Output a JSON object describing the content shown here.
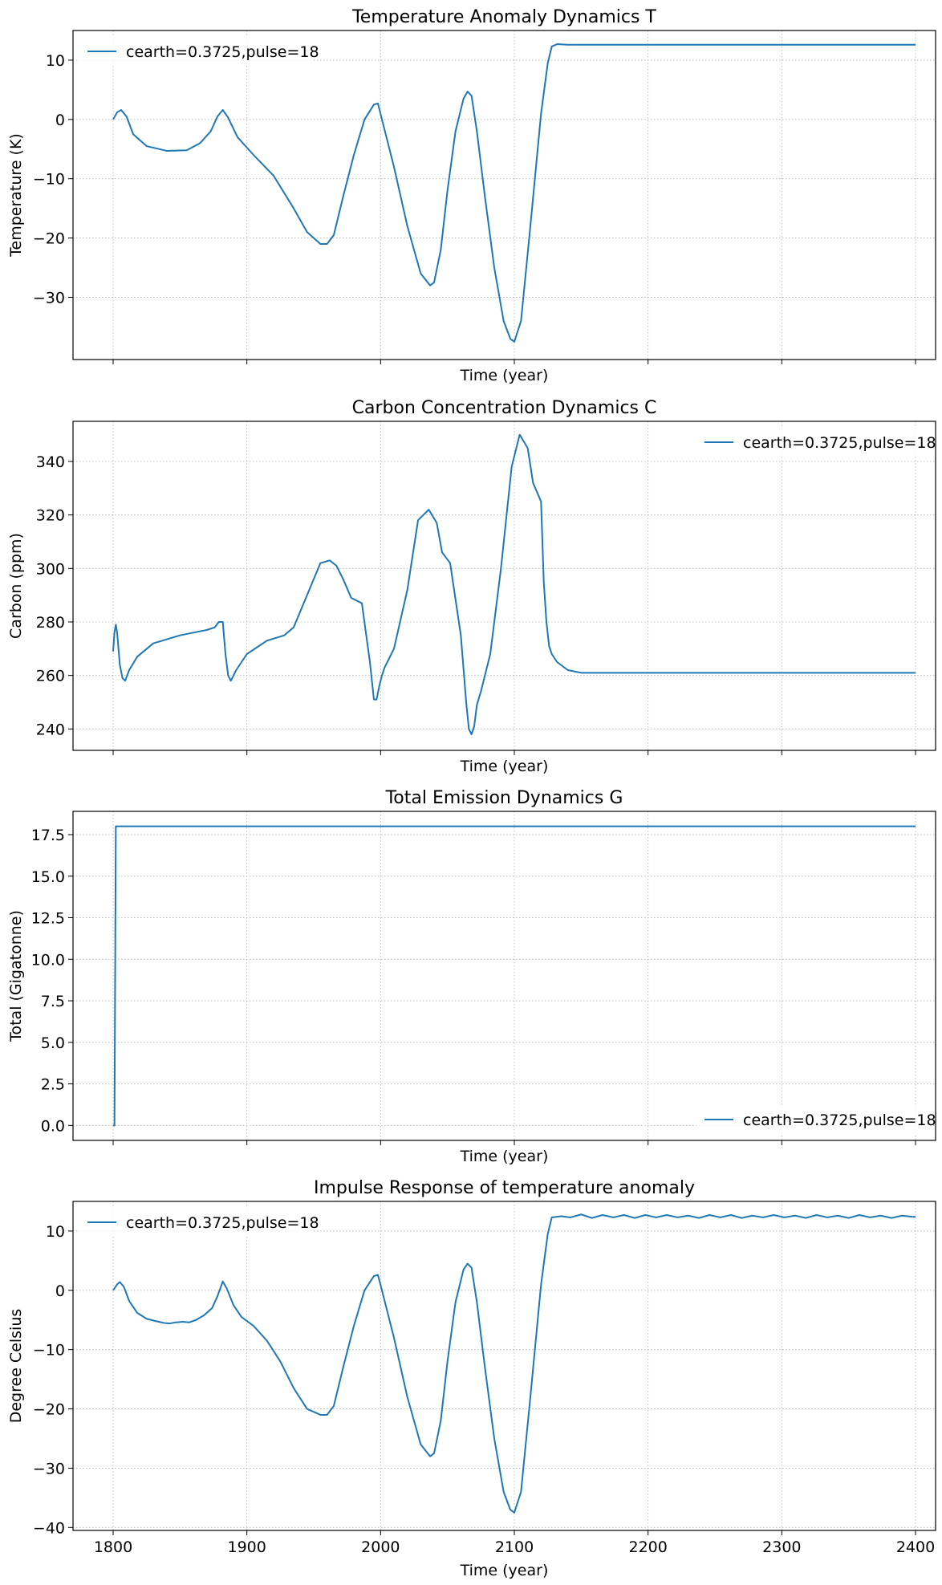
{
  "chart_data": [
    {
      "type": "line",
      "title": "Temperature Anomaly Dynamics T",
      "xlabel": "Time (year)",
      "ylabel": "Temperature (K)",
      "xlim": [
        1770,
        2415
      ],
      "ylim": [
        -40.5,
        15
      ],
      "xticks": [
        1800,
        1900,
        2000,
        2100,
        2200,
        2300,
        2400
      ],
      "yticks": [
        -30,
        -20,
        -10,
        0,
        10
      ],
      "show_xticklabels": false,
      "grid": true,
      "legend": "upper left",
      "series": [
        {
          "name": "cearth=0.3725,pulse=18",
          "color": "#1f77b4",
          "x": [
            1800,
            1803,
            1806,
            1810,
            1815,
            1825,
            1840,
            1855,
            1865,
            1873,
            1878,
            1882,
            1886,
            1893,
            1905,
            1920,
            1935,
            1945,
            1955,
            1960,
            1965,
            1972,
            1980,
            1988,
            1995,
            1998,
            2001,
            2010,
            2020,
            2030,
            2037,
            2040,
            2045,
            2050,
            2056,
            2062,
            2065,
            2068,
            2072,
            2078,
            2085,
            2092,
            2097,
            2100,
            2105,
            2112,
            2120,
            2125,
            2128,
            2132,
            2140,
            2200,
            2300,
            2400
          ],
          "values": [
            0,
            1.2,
            1.6,
            0.5,
            -2.5,
            -4.5,
            -5.3,
            -5.2,
            -4,
            -2,
            0.5,
            1.6,
            0.3,
            -3,
            -6,
            -9.5,
            -15,
            -19,
            -21,
            -21,
            -19.5,
            -13,
            -6,
            0,
            2.5,
            2.7,
            0,
            -8,
            -18,
            -26,
            -28,
            -27.5,
            -22,
            -12,
            -2,
            3.5,
            4.7,
            4,
            -2,
            -13,
            -25,
            -34,
            -37,
            -37.5,
            -34,
            -18,
            1,
            9.5,
            12.3,
            12.7,
            12.6,
            12.6,
            12.6,
            12.6
          ]
        }
      ]
    },
    {
      "type": "line",
      "title": "Carbon Concentration Dynamics C",
      "xlabel": "Time (year)",
      "ylabel": "Carbon (ppm)",
      "xlim": [
        1770,
        2415
      ],
      "ylim": [
        232,
        355
      ],
      "xticks": [
        1800,
        1900,
        2000,
        2100,
        2200,
        2300,
        2400
      ],
      "yticks": [
        240,
        260,
        280,
        300,
        320,
        340
      ],
      "show_xticklabels": false,
      "grid": true,
      "legend": "upper right",
      "series": [
        {
          "name": "cearth=0.3725,pulse=18",
          "color": "#1f77b4",
          "x": [
            1800,
            1801,
            1802,
            1803,
            1805,
            1807,
            1809,
            1812,
            1818,
            1830,
            1850,
            1870,
            1876,
            1879,
            1882,
            1884,
            1886,
            1888,
            1892,
            1900,
            1915,
            1928,
            1935,
            1945,
            1955,
            1962,
            1967,
            1972,
            1978,
            1986,
            1992,
            1995,
            1997,
            1999,
            2001,
            2003,
            2010,
            2020,
            2028,
            2036,
            2042,
            2046,
            2052,
            2060,
            2064,
            2066,
            2068,
            2070,
            2072,
            2075,
            2082,
            2090,
            2098,
            2104,
            2110,
            2114,
            2120,
            2122,
            2124,
            2126,
            2128,
            2132,
            2140,
            2150,
            2165,
            2200,
            2300,
            2400
          ],
          "values": [
            269,
            276,
            279,
            276,
            264,
            259,
            258,
            262,
            267,
            272,
            275,
            277,
            278,
            280,
            280,
            268,
            260,
            258,
            262,
            268,
            273,
            275,
            278,
            290,
            302,
            303,
            301,
            296,
            289,
            287,
            265,
            251,
            251,
            256,
            260,
            263,
            270,
            292,
            318,
            322,
            317,
            306,
            302,
            275,
            250,
            240,
            238,
            241,
            249,
            254,
            268,
            300,
            338,
            350,
            345,
            332,
            325,
            295,
            280,
            271,
            268,
            265,
            262,
            261,
            261,
            261,
            261,
            261
          ]
        }
      ]
    },
    {
      "type": "line",
      "title": "Total Emission Dynamics G",
      "xlabel": "Time (year)",
      "ylabel": "Total (Gigatonne)",
      "xlim": [
        1770,
        2415
      ],
      "ylim": [
        -0.9,
        18.9
      ],
      "xticks": [
        1800,
        1900,
        2000,
        2100,
        2200,
        2300,
        2400
      ],
      "yticks": [
        0.0,
        2.5,
        5.0,
        7.5,
        10.0,
        12.5,
        15.0,
        17.5
      ],
      "ytick_labels": [
        "0.0",
        "2.5",
        "5.0",
        "7.5",
        "10.0",
        "12.5",
        "15.0",
        "17.5"
      ],
      "show_xticklabels": false,
      "grid": true,
      "legend": "lower right",
      "series": [
        {
          "name": "cearth=0.3725,pulse=18",
          "color": "#1f77b4",
          "x": [
            1800,
            1801,
            1802,
            1803,
            2400
          ],
          "values": [
            0,
            0,
            18,
            18,
            18
          ]
        }
      ]
    },
    {
      "type": "line",
      "title": "Impulse Response of temperature anomaly",
      "xlabel": "Time (year)",
      "ylabel": "Degree Celsius",
      "xlim": [
        1770,
        2415
      ],
      "ylim": [
        -40.5,
        15
      ],
      "xticks": [
        1800,
        1900,
        2000,
        2100,
        2200,
        2300,
        2400
      ],
      "yticks": [
        -40,
        -30,
        -20,
        -10,
        0,
        10
      ],
      "show_xticklabels": true,
      "grid": true,
      "legend": "upper left",
      "series": [
        {
          "name": "cearth=0.3725,pulse=18",
          "color": "#1f77b4",
          "x": [
            1800,
            1803,
            1805,
            1808,
            1812,
            1818,
            1825,
            1832,
            1838,
            1842,
            1847,
            1852,
            1857,
            1862,
            1868,
            1874,
            1878,
            1882,
            1885,
            1890,
            1896,
            1905,
            1915,
            1925,
            1935,
            1945,
            1955,
            1960,
            1965,
            1972,
            1980,
            1988,
            1995,
            1998,
            2001,
            2010,
            2020,
            2030,
            2037,
            2040,
            2045,
            2050,
            2056,
            2062,
            2065,
            2068,
            2072,
            2078,
            2085,
            2092,
            2097,
            2100,
            2105,
            2112,
            2120,
            2125,
            2128,
            2135,
            2142,
            2150,
            2158,
            2166,
            2174,
            2182,
            2190,
            2198,
            2206,
            2214,
            2222,
            2230,
            2238,
            2246,
            2254,
            2262,
            2270,
            2278,
            2286,
            2294,
            2302,
            2310,
            2318,
            2326,
            2334,
            2342,
            2350,
            2358,
            2366,
            2374,
            2382,
            2390,
            2398,
            2400
          ],
          "values": [
            0,
            1.0,
            1.4,
            0.6,
            -1.8,
            -3.8,
            -4.8,
            -5.2,
            -5.5,
            -5.6,
            -5.4,
            -5.3,
            -5.4,
            -5.0,
            -4.2,
            -3.0,
            -1.0,
            1.5,
            0.3,
            -2.5,
            -4.5,
            -6.0,
            -8.5,
            -12.0,
            -16.5,
            -20.0,
            -21.0,
            -21.0,
            -19.5,
            -13,
            -6,
            0,
            2.4,
            2.6,
            0,
            -8,
            -18,
            -26,
            -28,
            -27.5,
            -22,
            -12,
            -2,
            3.5,
            4.5,
            3.8,
            -2,
            -13,
            -25,
            -34,
            -37,
            -37.5,
            -34,
            -18,
            1,
            9.5,
            12.3,
            12.5,
            12.3,
            12.8,
            12.2,
            12.7,
            12.3,
            12.7,
            12.2,
            12.7,
            12.3,
            12.7,
            12.3,
            12.6,
            12.2,
            12.7,
            12.3,
            12.7,
            12.2,
            12.6,
            12.3,
            12.7,
            12.3,
            12.6,
            12.2,
            12.7,
            12.3,
            12.6,
            12.2,
            12.7,
            12.3,
            12.6,
            12.2,
            12.6,
            12.4,
            12.4
          ]
        }
      ]
    }
  ]
}
